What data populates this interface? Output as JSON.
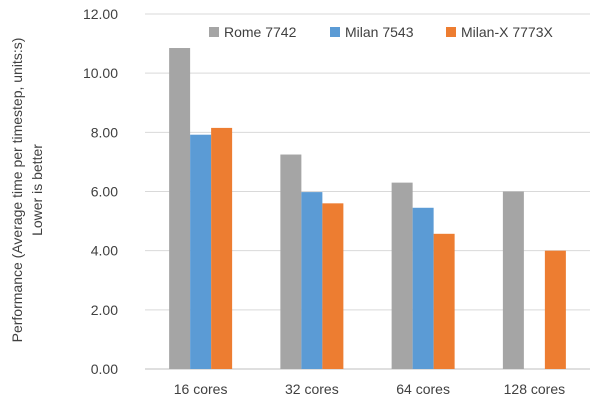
{
  "chart_data": {
    "type": "bar",
    "title": "",
    "xlabel": "",
    "ylabel": "Performance (Average time per timestep, units:s)",
    "ylabel_line2": "Lower is better",
    "categories": [
      "16 cores",
      "32 cores",
      "64 cores",
      "128 cores"
    ],
    "series": [
      {
        "name": "Rome 7742",
        "color": "#a5a5a5",
        "values": [
          10.85,
          7.25,
          6.3,
          6.0
        ]
      },
      {
        "name": "Milan 7543",
        "color": "#5b9bd5",
        "values": [
          7.92,
          5.98,
          5.45,
          null
        ]
      },
      {
        "name": "Milan-X 7773X",
        "color": "#ed7d31",
        "values": [
          8.15,
          5.6,
          4.57,
          4.0
        ]
      }
    ],
    "ylim": [
      0,
      12
    ],
    "yticks": [
      "0.00",
      "2.00",
      "4.00",
      "6.00",
      "8.00",
      "10.00",
      "12.00"
    ],
    "grid": true,
    "legend_position": "top-right"
  }
}
